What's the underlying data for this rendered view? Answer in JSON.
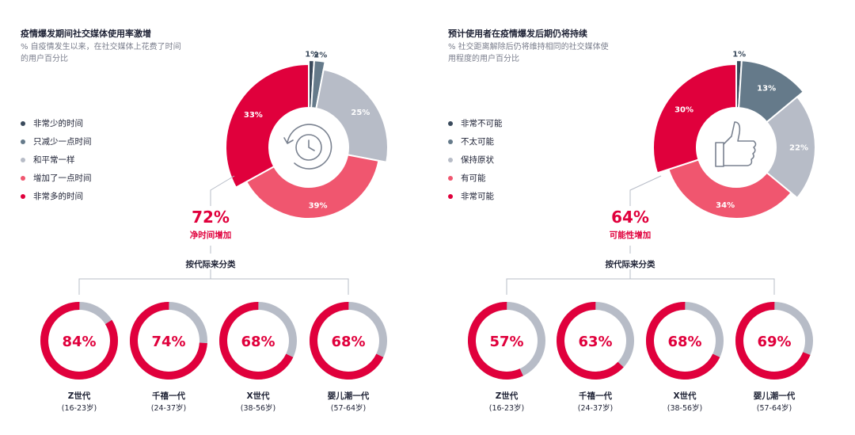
{
  "colors": {
    "very_little": "#3a4a5c",
    "a_little_less": "#657a8a",
    "same": "#b7bcc7",
    "a_little_more": "#f0566f",
    "much_more": "#e0003c",
    "gen_rest": "#b7bcc7"
  },
  "left": {
    "title": "疫情爆发期间社交媒体使用率激增",
    "subtitle": "% 自疫情发生以来，在社交媒体上花费了时间的用户百分比",
    "icon": "clock-refresh-icon",
    "net_value": "72%",
    "net_label": "净时间增加",
    "gen_title": "按代际来分类"
  },
  "right": {
    "title": "预计使用者在疫情爆发后期仍将持续",
    "subtitle": "% 社交距离解除后仍将维持相同的社交媒体使用程度的用户百分比",
    "icon": "thumbs-up-icon",
    "net_value": "64%",
    "net_label": "可能性增加",
    "gen_title": "按代际来分类"
  },
  "chart_data": [
    {
      "type": "pie",
      "title": "疫情爆发期间社交媒体使用率激增",
      "legend_position": "left",
      "categories": [
        "非常少的时间",
        "只减少一点时间",
        "和平常一样",
        "增加了一点时间",
        "非常多的时间"
      ],
      "values": [
        1,
        2,
        25,
        39,
        33
      ],
      "labels": [
        "1%",
        "2%",
        "25%",
        "39%",
        "33%"
      ]
    },
    {
      "type": "pie",
      "title": "预计使用者在疫情爆发后期仍将持续",
      "legend_position": "left",
      "categories": [
        "非常不可能",
        "不太可能",
        "保持原状",
        "有可能",
        "非常可能"
      ],
      "values": [
        1,
        13,
        22,
        34,
        30
      ],
      "labels": [
        "1%",
        "13%",
        "22%",
        "34%",
        "30%"
      ]
    },
    {
      "type": "pie",
      "title": "按代际来分类",
      "categories": [
        "Z世代",
        "千禧一代",
        "X世代",
        "婴儿潮一代"
      ],
      "ranges": [
        "(16-23岁)",
        "(24-37岁)",
        "(38-56岁)",
        "(57-64岁)"
      ],
      "values": [
        84,
        74,
        68,
        68
      ],
      "labels": [
        "84%",
        "74%",
        "68%",
        "68%"
      ]
    },
    {
      "type": "pie",
      "title": "按代际来分类",
      "categories": [
        "Z世代",
        "千禧一代",
        "X世代",
        "婴儿潮一代"
      ],
      "ranges": [
        "(16-23岁)",
        "(24-37岁)",
        "(38-56岁)",
        "(57-64岁)"
      ],
      "values": [
        57,
        63,
        68,
        69
      ],
      "labels": [
        "57%",
        "63%",
        "68%",
        "69%"
      ]
    }
  ]
}
